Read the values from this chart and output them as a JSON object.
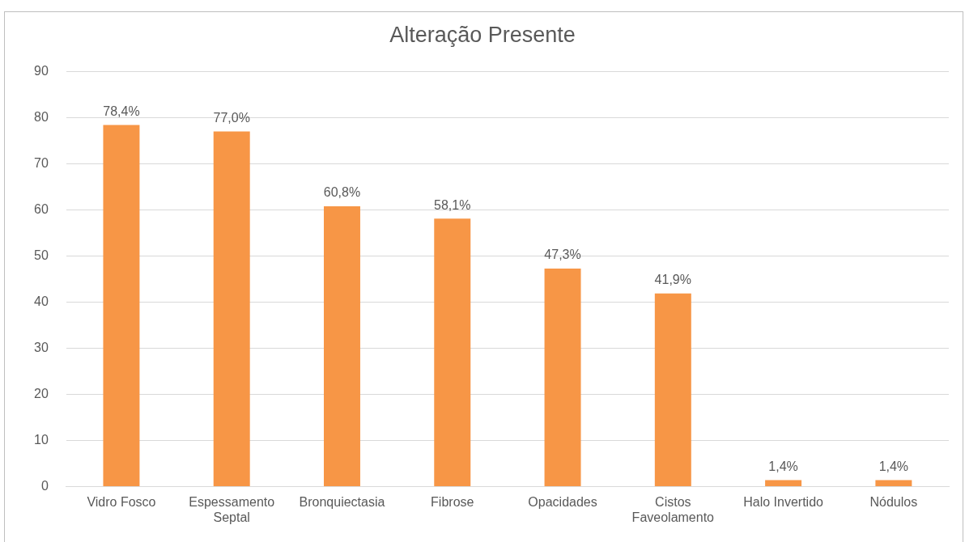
{
  "chart_data": {
    "type": "bar",
    "title": "Alteração Presente",
    "categories": [
      "Vidro Fosco",
      "Espessamento Septal",
      "Bronquiectasia",
      "Fibrose",
      "Opacidades",
      "Cistos Faveolamento",
      "Halo Invertido",
      "Nódulos"
    ],
    "values": [
      78.4,
      77.0,
      60.8,
      58.1,
      47.3,
      41.9,
      1.4,
      1.4
    ],
    "value_labels": [
      "78,4%",
      "77,0%",
      "60,8%",
      "58,1%",
      "47,3%",
      "41,9%",
      "1,4%",
      "1,4%"
    ],
    "color": "#f79646",
    "ylim": [
      0,
      90
    ],
    "yticks": [
      0,
      10,
      20,
      30,
      40,
      50,
      60,
      70,
      80,
      90
    ],
    "grid": "y",
    "legend": false
  }
}
